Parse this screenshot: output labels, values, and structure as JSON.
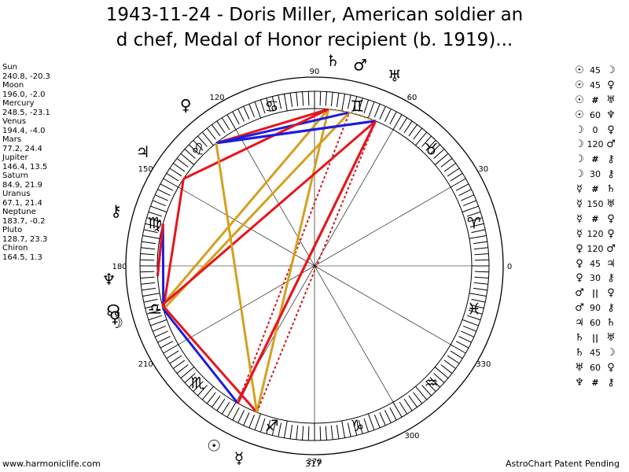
{
  "title": {
    "line1": "1943-11-24 - Doris Miller, American soldier an",
    "line2": "d chef, Medal of Honor recipient (b. 1919)..."
  },
  "positions": [
    {
      "name": "Sun",
      "value": "240.8, -20.3"
    },
    {
      "name": "Moon",
      "value": "196.0, -2.0"
    },
    {
      "name": "Mercury",
      "value": "248.5, -23.1"
    },
    {
      "name": "Venus",
      "value": "194.4, -4.0"
    },
    {
      "name": "Mars",
      "value": "77.2, 24.4"
    },
    {
      "name": "Jupiter",
      "value": "146.4, 13.5"
    },
    {
      "name": "Saturn",
      "value": "84.9, 21.9"
    },
    {
      "name": "Uranus",
      "value": "67.1, 21.4"
    },
    {
      "name": "Neptune",
      "value": "183.7, -0.2"
    },
    {
      "name": "Pluto",
      "value": "128.7, 23.3"
    },
    {
      "name": "Chiron",
      "value": "164.5, 1.3"
    }
  ],
  "aspects": [
    {
      "p1": "☉",
      "aspect": "45",
      "p2": "☽"
    },
    {
      "p1": "☉",
      "aspect": "45",
      "p2": "♀"
    },
    {
      "p1": "☉",
      "aspect": "#",
      "p2": "♅"
    },
    {
      "p1": "☉",
      "aspect": "60",
      "p2": "♆"
    },
    {
      "p1": "☽",
      "aspect": "0",
      "p2": "♀"
    },
    {
      "p1": "☽",
      "aspect": "120",
      "p2": "♂"
    },
    {
      "p1": "☽",
      "aspect": "#",
      "p2": "⚷"
    },
    {
      "p1": "☽",
      "aspect": "30",
      "p2": "⚷"
    },
    {
      "p1": "☿",
      "aspect": "#",
      "p2": "♄"
    },
    {
      "p1": "☿",
      "aspect": "150",
      "p2": "♅"
    },
    {
      "p1": "☿",
      "aspect": "#",
      "p2": "♀"
    },
    {
      "p1": "☿",
      "aspect": "120",
      "p2": "♀"
    },
    {
      "p1": "♀",
      "aspect": "120",
      "p2": "♂"
    },
    {
      "p1": "♀",
      "aspect": "45",
      "p2": "♃"
    },
    {
      "p1": "♀",
      "aspect": "30",
      "p2": "⚷"
    },
    {
      "p1": "♂",
      "aspect": "||",
      "p2": "♀"
    },
    {
      "p1": "♂",
      "aspect": "90",
      "p2": "⚷"
    },
    {
      "p1": "♃",
      "aspect": "60",
      "p2": "♄"
    },
    {
      "p1": "♄",
      "aspect": "||",
      "p2": "♅"
    },
    {
      "p1": "♄",
      "aspect": "45",
      "p2": "☽"
    },
    {
      "p1": "♅",
      "aspect": "60",
      "p2": "♀"
    },
    {
      "p1": "♆",
      "aspect": "#",
      "p2": "⚷"
    }
  ],
  "wheel": {
    "degree_labels": [
      "0",
      "30",
      "60",
      "90",
      "120",
      "150",
      "180",
      "210",
      "270",
      "300",
      "330"
    ],
    "zodiac": [
      "♈",
      "♉",
      "♊",
      "♋",
      "♌",
      "♍",
      "♎",
      "♏",
      "♐",
      "♑",
      "♒",
      "♓"
    ],
    "planets": [
      {
        "key": "sun",
        "glyph": "☉",
        "lon": 240.8
      },
      {
        "key": "moon",
        "glyph": "☽",
        "lon": 196.0
      },
      {
        "key": "mercury",
        "glyph": "☿",
        "lon": 248.5
      },
      {
        "key": "venus",
        "glyph": "♀",
        "lon": 194.4
      },
      {
        "key": "mars",
        "glyph": "♂",
        "lon": 77.2
      },
      {
        "key": "jupiter",
        "glyph": "♃",
        "lon": 146.4
      },
      {
        "key": "saturn",
        "glyph": "♄",
        "lon": 84.9
      },
      {
        "key": "uranus",
        "glyph": "♅",
        "lon": 67.1
      },
      {
        "key": "neptune",
        "glyph": "♆",
        "lon": 183.7
      },
      {
        "key": "pluto",
        "glyph": "♀",
        "lon": 128.7
      },
      {
        "key": "chiron",
        "glyph": "⚷",
        "lon": 164.5
      },
      {
        "key": "node",
        "glyph": "☊",
        "lon": 192.5
      }
    ],
    "colors": {
      "red": "#e8141c",
      "blue": "#1c1ce0",
      "gold": "#d4a020",
      "dotted_red": "#d01010"
    }
  },
  "footer": {
    "left": "www.harmoniclife.com",
    "center": "317",
    "right": "AstroChart Patent Pending"
  }
}
